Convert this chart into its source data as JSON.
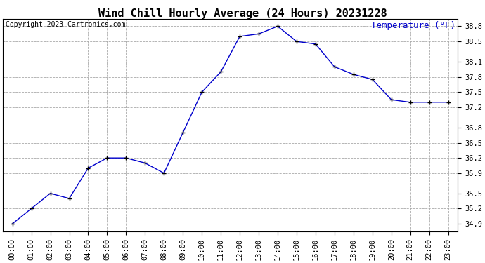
{
  "title": "Wind Chill Hourly Average (24 Hours) 20231228",
  "copyright_text": "Copyright 2023 Cartronics.com",
  "ylabel": "Temperature (°F)",
  "hours": [
    "00:00",
    "01:00",
    "02:00",
    "03:00",
    "04:00",
    "05:00",
    "06:00",
    "07:00",
    "08:00",
    "09:00",
    "10:00",
    "11:00",
    "12:00",
    "13:00",
    "14:00",
    "15:00",
    "16:00",
    "17:00",
    "18:00",
    "19:00",
    "20:00",
    "21:00",
    "22:00",
    "23:00"
  ],
  "values": [
    34.9,
    35.2,
    35.5,
    35.4,
    36.0,
    36.2,
    36.2,
    36.1,
    35.9,
    36.7,
    37.5,
    37.9,
    38.6,
    38.65,
    38.8,
    38.5,
    38.45,
    38.0,
    37.85,
    37.75,
    37.35,
    37.3,
    37.3,
    37.3
  ],
  "yticks": [
    34.9,
    35.2,
    35.5,
    35.9,
    36.2,
    36.5,
    36.8,
    37.2,
    37.5,
    37.8,
    38.1,
    38.5,
    38.8
  ],
  "line_color": "#0000cc",
  "marker": "+",
  "marker_color": "#000000",
  "background_color": "#ffffff",
  "grid_color": "#aaaaaa",
  "title_fontsize": 11,
  "copyright_fontsize": 7,
  "ylabel_fontsize": 9,
  "tick_fontsize": 7.5
}
